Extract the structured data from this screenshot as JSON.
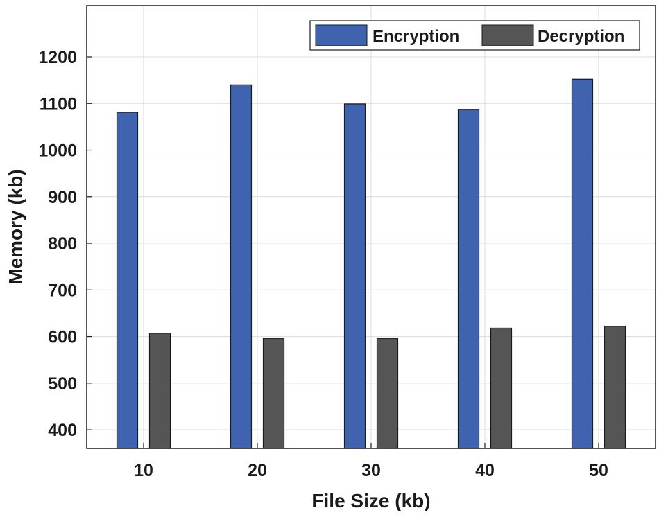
{
  "chart_data": {
    "type": "bar",
    "categories": [
      "10",
      "20",
      "30",
      "40",
      "50"
    ],
    "series": [
      {
        "name": "Encryption",
        "values": [
          1081,
          1140,
          1099,
          1087,
          1152
        ],
        "color": "#4063b0"
      },
      {
        "name": "Decryption",
        "values": [
          607,
          596,
          596,
          618,
          622
        ],
        "color": "#555555"
      }
    ],
    "xlabel": "File Size (kb)",
    "ylabel": "Memory (kb)",
    "ylim": [
      360,
      1310
    ],
    "yticks": [
      400,
      500,
      600,
      700,
      800,
      900,
      1000,
      1100,
      1200
    ],
    "grid": true,
    "legend_position": "top-right"
  }
}
